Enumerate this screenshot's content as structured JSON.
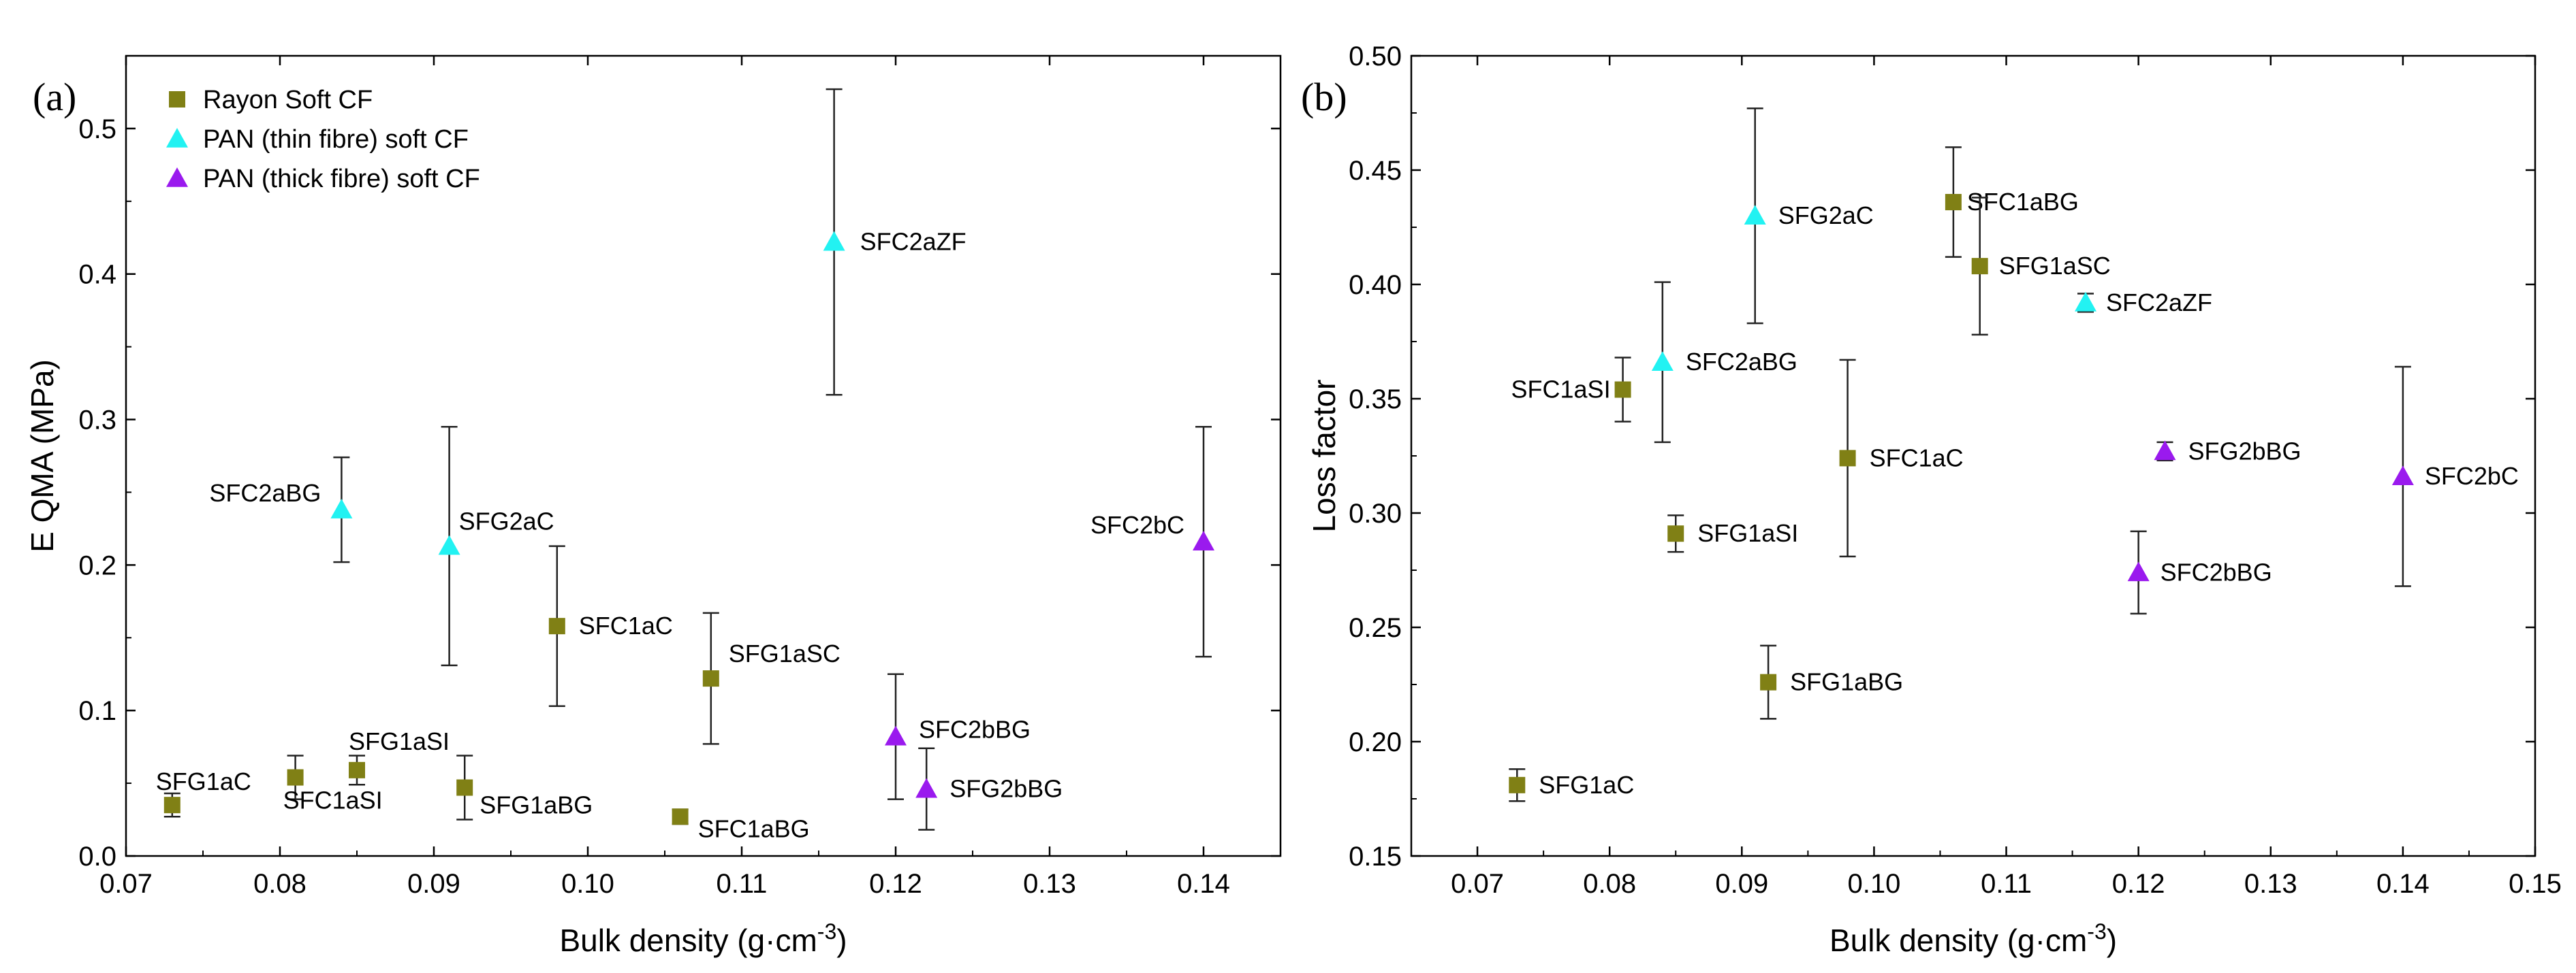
{
  "chart_data": [
    {
      "type": "scatter",
      "panel": "(a)",
      "xlabel": "Bulk density (g·cm",
      "xlabel_sup": "-3",
      "xlabel_end": ")",
      "ylabel": "E QMA (MPa)",
      "xlim": [
        0.07,
        0.145
      ],
      "ylim": [
        0,
        0.55
      ],
      "xticks": [
        "0.07",
        "0.08",
        "0.09",
        "0.10",
        "0.11",
        "0.12",
        "0.13",
        "0.14"
      ],
      "yticks": [
        "0.0",
        "0.1",
        "0.2",
        "0.3",
        "0.4",
        "0.5"
      ],
      "grid": false,
      "legend_position": "top-left",
      "series": [
        {
          "name": "Rayon Soft CF",
          "marker": "square",
          "color": "#808015",
          "points": [
            {
              "label": "SFG1aC",
              "x": 0.073,
              "y": 0.035,
              "err": 0.008
            },
            {
              "label": "SFC1aSI",
              "x": 0.081,
              "y": 0.054,
              "err": 0.015
            },
            {
              "label": "SFG1aSI",
              "x": 0.085,
              "y": 0.059,
              "err": 0.01
            },
            {
              "label": "SFG1aBG",
              "x": 0.092,
              "y": 0.047,
              "err": 0.022
            },
            {
              "label": "SFC1aC",
              "x": 0.098,
              "y": 0.158,
              "err": 0.055
            },
            {
              "label": "SFC1aBG",
              "x": 0.106,
              "y": 0.027,
              "err": 0.005
            },
            {
              "label": "SFG1aSC",
              "x": 0.108,
              "y": 0.122,
              "err": 0.045
            }
          ]
        },
        {
          "name": "PAN (thin fibre) soft CF",
          "marker": "triangle",
          "color": "#22f2f2",
          "points": [
            {
              "label": "SFC2aBG",
              "x": 0.084,
              "y": 0.238,
              "err": 0.036
            },
            {
              "label": "SFG2aC",
              "x": 0.091,
              "y": 0.213,
              "err": 0.082
            },
            {
              "label": "SFC2aZF",
              "x": 0.116,
              "y": 0.422,
              "err": 0.105
            }
          ]
        },
        {
          "name": "PAN (thick fibre) soft CF",
          "marker": "triangle",
          "color": "#9a1aee",
          "points": [
            {
              "label": "SFC2bBG",
              "x": 0.12,
              "y": 0.082,
              "err": 0.043
            },
            {
              "label": "SFG2bBG",
              "x": 0.122,
              "y": 0.046,
              "err": 0.028
            },
            {
              "label": "SFC2bC",
              "x": 0.14,
              "y": 0.216,
              "err": 0.079
            }
          ]
        }
      ]
    },
    {
      "type": "scatter",
      "panel": "(b)",
      "xlabel": "Bulk density (g·cm",
      "xlabel_sup": "-3",
      "xlabel_end": ")",
      "ylabel": "Loss factor",
      "xlim": [
        0.065,
        0.15
      ],
      "ylim": [
        0.15,
        0.5
      ],
      "xticks": [
        "0.07",
        "0.08",
        "0.09",
        "0.10",
        "0.11",
        "0.12",
        "0.13",
        "0.14",
        "0.15"
      ],
      "yticks": [
        "0.15",
        "0.20",
        "0.25",
        "0.30",
        "0.35",
        "0.40",
        "0.45",
        "0.50"
      ],
      "grid": false,
      "series": [
        {
          "name": "Rayon Soft CF",
          "marker": "square",
          "color": "#808015",
          "points": [
            {
              "label": "SFG1aC",
              "x": 0.073,
              "y": 0.181,
              "err": 0.007
            },
            {
              "label": "SFC1aSI",
              "x": 0.081,
              "y": 0.354,
              "err": 0.014
            },
            {
              "label": "SFG1aSI",
              "x": 0.085,
              "y": 0.291,
              "err": 0.008
            },
            {
              "label": "SFG1aBG",
              "x": 0.092,
              "y": 0.226,
              "err": 0.016
            },
            {
              "label": "SFC1aC",
              "x": 0.098,
              "y": 0.324,
              "err": 0.043
            },
            {
              "label": "SFC1aBG",
              "x": 0.106,
              "y": 0.436,
              "err": 0.024
            },
            {
              "label": "SFG1aSC",
              "x": 0.108,
              "y": 0.408,
              "err": 0.03
            }
          ]
        },
        {
          "name": "PAN (thin fibre) soft CF",
          "marker": "triangle",
          "color": "#22f2f2",
          "points": [
            {
              "label": "SFC2aBG",
              "x": 0.084,
              "y": 0.366,
              "err": 0.035
            },
            {
              "label": "SFG2aC",
              "x": 0.091,
              "y": 0.43,
              "err": 0.047
            },
            {
              "label": "SFC2aZF",
              "x": 0.116,
              "y": 0.392,
              "err": 0.004
            }
          ]
        },
        {
          "name": "PAN (thick fibre) soft CF",
          "marker": "triangle",
          "color": "#9a1aee",
          "points": [
            {
              "label": "SFC2bBG",
              "x": 0.12,
              "y": 0.274,
              "err": 0.018
            },
            {
              "label": "SFG2bBG",
              "x": 0.122,
              "y": 0.327,
              "err": 0.004
            },
            {
              "label": "SFC2bC",
              "x": 0.14,
              "y": 0.316,
              "err": 0.048
            }
          ]
        }
      ]
    }
  ]
}
